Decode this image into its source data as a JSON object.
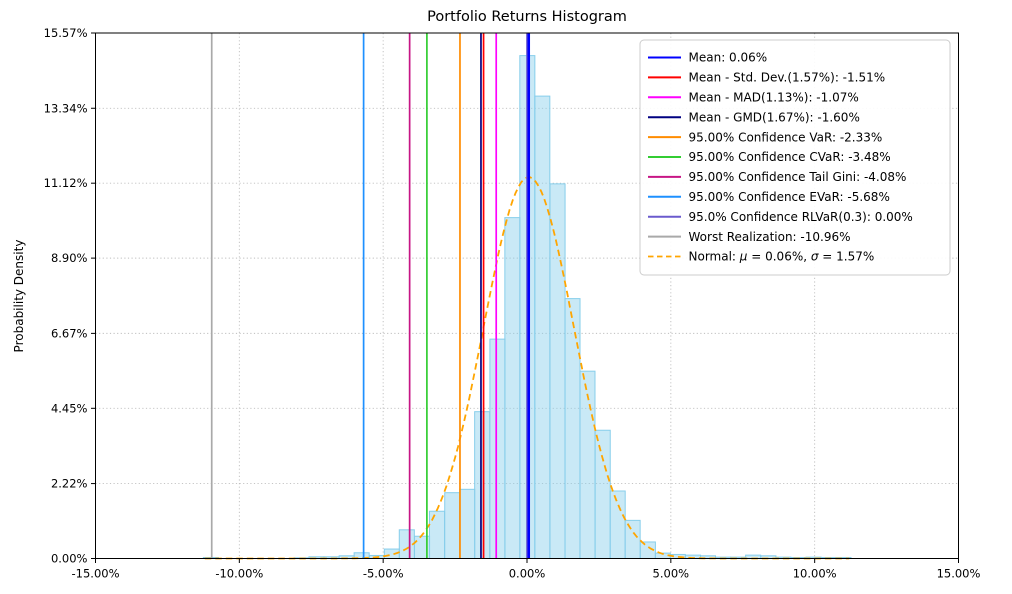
{
  "chart_data": {
    "type": "histogram",
    "title": "Portfolio Returns Histogram",
    "xlabel": "",
    "ylabel": "Probability Density",
    "xlim": [
      -15,
      15
    ],
    "ylim": [
      0,
      15.57
    ],
    "grid": true,
    "x_ticks": [
      {
        "v": -15,
        "label": "-15.00%"
      },
      {
        "v": -10,
        "label": "-10.00%"
      },
      {
        "v": -5,
        "label": "-5.00%"
      },
      {
        "v": 0,
        "label": "0.00%"
      },
      {
        "v": 5,
        "label": "5.00%"
      },
      {
        "v": 10,
        "label": "10.00%"
      },
      {
        "v": 15,
        "label": "15.00%"
      }
    ],
    "y_ticks": [
      {
        "v": 0,
        "label": "0.00%"
      },
      {
        "v": 2.22,
        "label": "2.22%"
      },
      {
        "v": 4.45,
        "label": "4.45%"
      },
      {
        "v": 6.67,
        "label": "6.67%"
      },
      {
        "v": 8.9,
        "label": "8.90%"
      },
      {
        "v": 11.12,
        "label": "11.12%"
      },
      {
        "v": 13.34,
        "label": "13.34%"
      },
      {
        "v": 15.57,
        "label": "15.57%"
      }
    ],
    "hist": {
      "fill_color": "#87CEEB",
      "fill_opacity": 0.45,
      "edge_color": "#87CEEB",
      "bin_width": 0.5234,
      "bins": [
        [
          -11.25,
          0.03
        ],
        [
          -8.1,
          0.02
        ],
        [
          -7.58,
          0.05
        ],
        [
          -7.06,
          0.05
        ],
        [
          -6.53,
          0.08
        ],
        [
          -6.01,
          0.17
        ],
        [
          -5.48,
          0.09
        ],
        [
          -4.96,
          0.28
        ],
        [
          -4.44,
          0.85
        ],
        [
          -3.91,
          0.66
        ],
        [
          -3.39,
          1.4
        ],
        [
          -2.86,
          1.95
        ],
        [
          -2.34,
          2.05
        ],
        [
          -1.82,
          4.35
        ],
        [
          -1.29,
          6.5
        ],
        [
          -0.77,
          10.1
        ],
        [
          -0.25,
          14.9
        ],
        [
          0.27,
          13.7
        ],
        [
          0.8,
          11.1
        ],
        [
          1.32,
          7.7
        ],
        [
          1.84,
          5.55
        ],
        [
          2.37,
          3.8
        ],
        [
          2.89,
          2.0
        ],
        [
          3.41,
          1.13
        ],
        [
          3.94,
          0.49
        ],
        [
          4.46,
          0.16
        ],
        [
          4.98,
          0.12
        ],
        [
          5.51,
          0.1
        ],
        [
          6.03,
          0.08
        ],
        [
          6.56,
          0.04
        ],
        [
          7.08,
          0.04
        ],
        [
          7.6,
          0.1
        ],
        [
          8.13,
          0.08
        ],
        [
          8.65,
          0.04
        ],
        [
          9.17,
          0.03
        ],
        [
          9.7,
          0.04
        ],
        [
          10.22,
          0.03
        ],
        [
          10.74,
          0.03
        ]
      ]
    },
    "normal_curve": {
      "mu": 0.06,
      "sigma": 1.57,
      "peak_density": 11.3,
      "range": [
        -11.2,
        11.2
      ],
      "color": "#FFA500",
      "style": "dashed"
    },
    "risk_lines": [
      {
        "name": "mean",
        "label": "Mean: 0.06%",
        "value": 0.06,
        "color": "#0000FF",
        "width": 2.6
      },
      {
        "name": "std-dev",
        "label": "Mean - Std. Dev.(1.57%): -1.51%",
        "value": -1.51,
        "color": "#FF0000",
        "width": 1.7
      },
      {
        "name": "mad",
        "label": "Mean - MAD(1.13%): -1.07%",
        "value": -1.07,
        "color": "#FF00FF",
        "width": 1.7
      },
      {
        "name": "gmd",
        "label": "Mean - GMD(1.67%): -1.60%",
        "value": -1.6,
        "color": "#000080",
        "width": 1.7
      },
      {
        "name": "var",
        "label": "95.00% Confidence VaR: -2.33%",
        "value": -2.33,
        "color": "#FF8C00",
        "width": 1.7
      },
      {
        "name": "cvar",
        "label": "95.00% Confidence CVaR: -3.48%",
        "value": -3.48,
        "color": "#32CD32",
        "width": 1.7
      },
      {
        "name": "tail-gini",
        "label": "95.00% Confidence Tail Gini: -4.08%",
        "value": -4.08,
        "color": "#C71585",
        "width": 1.7
      },
      {
        "name": "evar",
        "label": "95.00% Confidence EVaR: -5.68%",
        "value": -5.68,
        "color": "#1E90FF",
        "width": 1.7
      },
      {
        "name": "rlvar",
        "label": "95.0% Confidence RLVaR(0.3): 0.00%",
        "value": 0.0,
        "color": "#6A5ACD",
        "width": 1.7
      },
      {
        "name": "worst",
        "label": "Worst Realization: -10.96%",
        "value": -10.96,
        "color": "#A9A9A9",
        "width": 1.7
      }
    ],
    "legend": {
      "position": "top-right",
      "normal_label": "Normal: μ = 0.06%, σ = 1.57%"
    }
  }
}
